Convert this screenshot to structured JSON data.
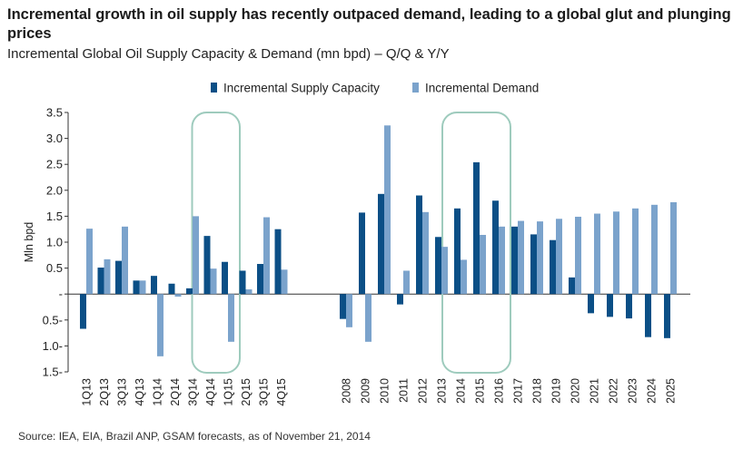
{
  "title": "Incremental growth in oil supply has recently outpaced demand, leading to a global glut and plunging prices",
  "subtitle": "Incremental Global Oil Supply Capacity & Demand (mn bpd) – Q/Q & Y/Y",
  "source": "Source: IEA, EIA, Brazil ANP, GSAM forecasts, as of November 21, 2014",
  "chart_data": {
    "type": "bar",
    "ylabel": "Mln bpd",
    "ylim": [
      -1.5,
      3.5
    ],
    "yticks": [
      {
        "value": 3.5,
        "label": "3.5"
      },
      {
        "value": 3.0,
        "label": "3.0"
      },
      {
        "value": 2.5,
        "label": "2.5"
      },
      {
        "value": 2.0,
        "label": "2.0"
      },
      {
        "value": 1.5,
        "label": "1.5"
      },
      {
        "value": 1.0,
        "label": "1.0"
      },
      {
        "value": 0.5,
        "label": "0.5"
      },
      {
        "value": 0,
        "label": "-"
      },
      {
        "value": -0.5,
        "label": "0.5-"
      },
      {
        "value": -1.0,
        "label": "1.0-"
      },
      {
        "value": -1.5,
        "label": "1.5-"
      }
    ],
    "categories": [
      "1Q13",
      "2Q13",
      "3Q13",
      "4Q13",
      "1Q14",
      "2Q14",
      "3Q14",
      "4Q14",
      "1Q15",
      "2Q15",
      "3Q15",
      "4Q15",
      "2008",
      "2009",
      "2010",
      "2011",
      "2012",
      "2013",
      "2014",
      "2015",
      "2016",
      "2017",
      "2018",
      "2019",
      "2020",
      "2021",
      "2022",
      "2023",
      "2024",
      "2025"
    ],
    "series": [
      {
        "name": "Incremental Supply Capacity",
        "color": "#0b4f86",
        "values": [
          -0.67,
          0.51,
          0.64,
          0.26,
          0.35,
          0.2,
          0.11,
          1.12,
          0.62,
          0.45,
          0.58,
          1.25,
          -0.48,
          1.57,
          1.93,
          -0.2,
          1.9,
          1.1,
          1.65,
          2.54,
          1.8,
          1.3,
          1.15,
          1.04,
          0.32,
          -0.37,
          -0.44,
          -0.47,
          -0.83,
          -0.85
        ]
      },
      {
        "name": "Incremental Demand",
        "color": "#7ba3cc",
        "values": [
          1.26,
          0.67,
          1.3,
          0.26,
          -1.2,
          -0.05,
          1.5,
          0.49,
          -0.92,
          0.09,
          1.48,
          0.47,
          -0.64,
          -0.92,
          3.25,
          0.45,
          1.58,
          0.91,
          0.66,
          1.14,
          1.3,
          1.41,
          1.4,
          1.45,
          1.49,
          1.55,
          1.59,
          1.65,
          1.72,
          1.77
        ]
      }
    ],
    "highlights": [
      {
        "from": "4Q14",
        "to": "1Q15"
      },
      {
        "from": "2014",
        "to": "2016"
      }
    ],
    "legend_position": "top-center",
    "frame_color": "#9ecbbd"
  }
}
